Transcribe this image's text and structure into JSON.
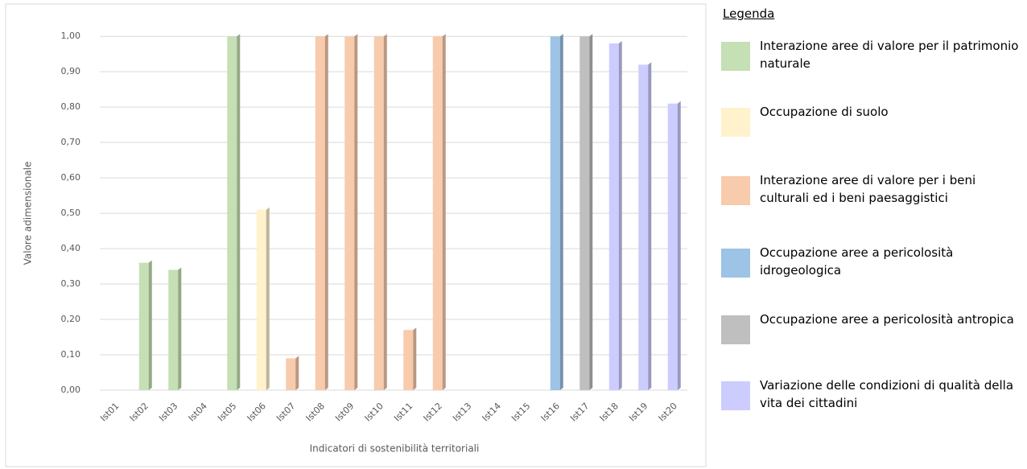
{
  "chart_data": {
    "type": "bar",
    "x_label": "Indicatori di sostenibilità territoriali",
    "y_label": "Valore adimensionale",
    "legend_title": "Legenda",
    "categories": [
      "Ist01",
      "Ist02",
      "Ist03",
      "Ist04",
      "Ist05",
      "Ist06",
      "Ist07",
      "Ist08",
      "Ist09",
      "Ist10",
      "Ist11",
      "Ist12",
      "Ist13",
      "Ist14",
      "Ist15",
      "Ist16",
      "Ist17",
      "Ist18",
      "Ist19",
      "Ist20"
    ],
    "series": [
      {
        "name": "Interazione aree di valore per il patrimonio naturale",
        "color": "#c5e0b4",
        "values": [
          0,
          0.36,
          0.34,
          0,
          1.0,
          null,
          null,
          null,
          null,
          null,
          null,
          null,
          null,
          null,
          null,
          null,
          null,
          null,
          null,
          null
        ]
      },
      {
        "name": "Occupazione di suolo",
        "color": "#fff2cc",
        "values": [
          null,
          null,
          null,
          null,
          null,
          0.51,
          null,
          null,
          null,
          null,
          null,
          null,
          null,
          null,
          null,
          null,
          null,
          null,
          null,
          null
        ]
      },
      {
        "name": "Interazione aree di valore per i beni culturali ed i beni paesaggistici",
        "color": "#f8cbad",
        "values": [
          null,
          null,
          null,
          null,
          null,
          null,
          0.09,
          1.0,
          1.0,
          1.0,
          0.17,
          1.0,
          0,
          0,
          0,
          null,
          null,
          null,
          null,
          null
        ]
      },
      {
        "name": "Occupazione aree a pericolosità idrogeologica",
        "color": "#9dc3e6",
        "values": [
          null,
          null,
          null,
          null,
          null,
          null,
          null,
          null,
          null,
          null,
          null,
          null,
          null,
          null,
          null,
          1.0,
          null,
          null,
          null,
          null
        ]
      },
      {
        "name": "Occupazione aree a pericolosità antropica",
        "color": "#bfbfbf",
        "values": [
          null,
          null,
          null,
          null,
          null,
          null,
          null,
          null,
          null,
          null,
          null,
          null,
          null,
          null,
          null,
          null,
          1.0,
          null,
          null,
          null
        ]
      },
      {
        "name": "Variazione delle condizioni di qualità della vita dei cittadini",
        "color": "#ccccff",
        "values": [
          null,
          null,
          null,
          null,
          null,
          null,
          null,
          null,
          null,
          null,
          null,
          null,
          null,
          null,
          null,
          null,
          null,
          0.98,
          0.92,
          0.81
        ]
      }
    ],
    "ylim": [
      0,
      1.03
    ],
    "yticks": [
      {
        "value": 0,
        "label": "0,00"
      },
      {
        "value": 0.1,
        "label": "0,10"
      },
      {
        "value": 0.2,
        "label": "0,20"
      },
      {
        "value": 0.3,
        "label": "0,30"
      },
      {
        "value": 0.4,
        "label": "0,40"
      },
      {
        "value": 0.5,
        "label": "0,50"
      },
      {
        "value": 0.6,
        "label": "0,60"
      },
      {
        "value": 0.7,
        "label": "0,70"
      },
      {
        "value": 0.8,
        "label": "0,80"
      },
      {
        "value": 0.9,
        "label": "0,90"
      },
      {
        "value": 1.0,
        "label": "1,00"
      }
    ],
    "grid": true
  }
}
